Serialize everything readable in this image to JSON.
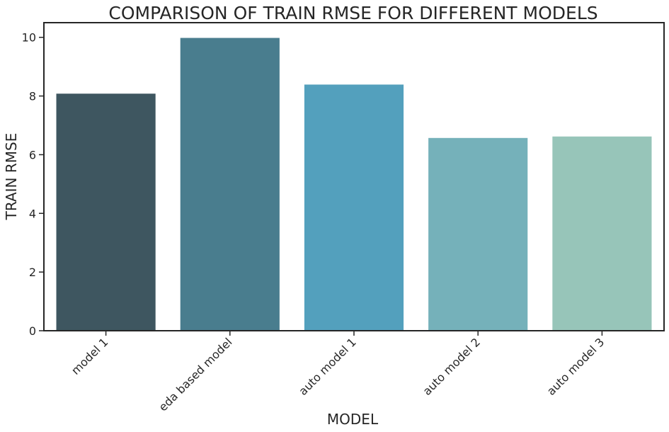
{
  "chart_data": {
    "type": "bar",
    "title": "COMPARISON OF TRAIN RMSE FOR DIFFERENT MODELS",
    "xlabel": "MODEL",
    "ylabel": "TRAIN RMSE",
    "categories": [
      "model 1",
      "eda based model",
      "auto model 1",
      "auto model 2",
      "auto model 3"
    ],
    "values": [
      8.08,
      9.98,
      8.39,
      6.57,
      6.62
    ],
    "colors": [
      "#3e5660",
      "#497d8e",
      "#53a0bd",
      "#75b1ba",
      "#97c5b9"
    ],
    "ylim": [
      0,
      10.5
    ],
    "yticks": [
      0,
      2,
      4,
      6,
      8,
      10
    ],
    "grid": false,
    "legend": "none"
  }
}
